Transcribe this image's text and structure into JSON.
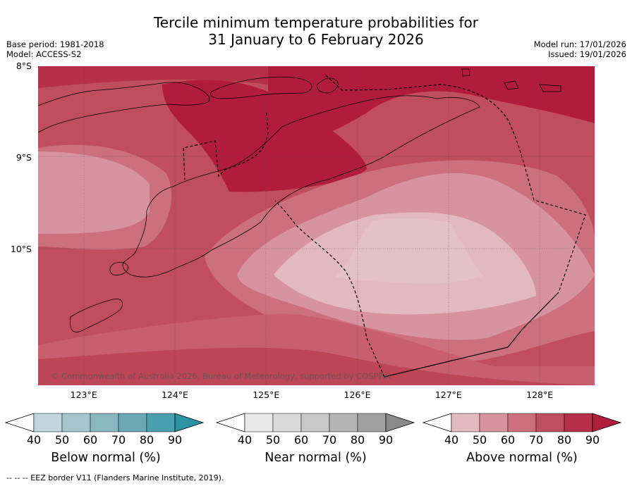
{
  "title": {
    "line1": "Tercile minimum temperature probabilities for",
    "line2": "31 January to 6 February 2026"
  },
  "meta": {
    "base_period": "Base period: 1981-2018",
    "model": "Model: ACCESS-S2",
    "model_run": "Model run: 17/01/2026",
    "issued": "Issued: 19/01/2026"
  },
  "map": {
    "lat_labels": [
      "8°S",
      "9°S",
      "10°S"
    ],
    "lon_labels": [
      "123°E",
      "124°E",
      "125°E",
      "126°E",
      "127°E",
      "128°E"
    ],
    "copyright": "© Commonwealth of Australia 2026, Bureau of Meteorology, supported by COSPPac",
    "legend_note": "--  --  -- EEZ border V11 (Flanders Marine Institute, 2019)."
  },
  "chart_data": {
    "type": "heatmap",
    "title": "Tercile minimum temperature probabilities for 31 January to 6 February 2026",
    "lat_range": [
      -11.5,
      -8.0
    ],
    "lon_range": [
      122.5,
      128.6
    ],
    "lat_ticks": [
      -8,
      -9,
      -10
    ],
    "lon_ticks": [
      123,
      124,
      125,
      126,
      127,
      128
    ],
    "field": "Above normal (%)",
    "regions": [
      {
        "area": "north coast of Timor / Wetar Strait",
        "category": "above",
        "range": "80-90"
      },
      {
        "area": "central Timor highlands",
        "category": "above",
        "range": "80-90"
      },
      {
        "area": "Savu Sea west of Timor",
        "category": "above",
        "range": "70-80"
      },
      {
        "area": "western Savu Sea",
        "category": "above",
        "range": "50-60"
      },
      {
        "area": "Timor Sea south of Timor",
        "category": "above",
        "range": "40-50"
      },
      {
        "area": "Timor Sea southern margin",
        "category": "above",
        "range": "60-70"
      }
    ]
  },
  "colorbars": [
    {
      "name": "below",
      "label": "Below normal (%)",
      "ticks": [
        "40",
        "50",
        "60",
        "70",
        "80",
        "90"
      ],
      "colors": [
        "#c0d6dc",
        "#a5c6cd",
        "#89b7c1",
        "#6aa7b4",
        "#4aa0ae",
        "#2a93a4"
      ]
    },
    {
      "name": "near",
      "label": "Near normal (%)",
      "ticks": [
        "40",
        "50",
        "60",
        "70",
        "80",
        "90"
      ],
      "colors": [
        "#e8e8e8",
        "#dadada",
        "#c9c9c9",
        "#b5b5b5",
        "#a1a1a1",
        "#8a8a8a"
      ]
    },
    {
      "name": "above",
      "label": "Above normal (%)",
      "ticks": [
        "40",
        "50",
        "60",
        "70",
        "80",
        "90"
      ],
      "colors": [
        "#e2b9bf",
        "#d8949e",
        "#cd707e",
        "#c04e5e",
        "#b53048",
        "#b11c3c"
      ]
    }
  ]
}
